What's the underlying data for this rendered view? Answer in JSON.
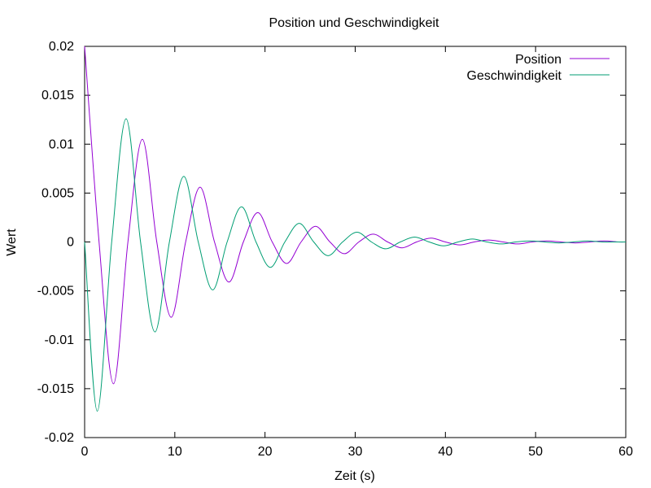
{
  "chart_data": {
    "type": "line",
    "title": "Position und Geschwindigkeit",
    "xlabel": "Zeit (s)",
    "ylabel": "Wert",
    "xlim": [
      0,
      60
    ],
    "ylim": [
      -0.02,
      0.02
    ],
    "xticks": [
      0,
      10,
      20,
      30,
      40,
      50,
      60
    ],
    "xtick_labels": [
      "0",
      "10",
      "20",
      "30",
      "40",
      "50",
      "60"
    ],
    "yticks": [
      -0.02,
      -0.015,
      -0.01,
      -0.005,
      0,
      0.005,
      0.01,
      0.015,
      0.02
    ],
    "ytick_labels": [
      "-0.02",
      "-0.015",
      "-0.01",
      "-0.005",
      "0",
      "0.005",
      "0.01",
      "0.015",
      "0.02"
    ],
    "grid": false,
    "legend_position": "top-right",
    "series": [
      {
        "name": "Position",
        "color": "#9400D3",
        "x": [
          0,
          1.6,
          3.2,
          4.8,
          6.4,
          8.0,
          9.6,
          11.2,
          12.8,
          14.4,
          16.0,
          17.6,
          19.2,
          20.8,
          22.4,
          24.0,
          25.6,
          27.2,
          28.8,
          30.4,
          32.0,
          33.6,
          35.2,
          36.8,
          38.4,
          40.0,
          41.6,
          43.2,
          44.8,
          46.4,
          48.0,
          49.6,
          51.2,
          52.8,
          54.4,
          56.0,
          57.6,
          59.2,
          60.0
        ],
        "y": [
          0.02,
          0.0,
          -0.0145,
          0.0,
          0.0105,
          0.0,
          -0.0077,
          0.0,
          0.0056,
          0.0,
          -0.0041,
          0.0,
          0.003,
          0.0,
          -0.0022,
          0.0,
          0.0016,
          0.0,
          -0.0012,
          0.0,
          0.0008,
          0.0,
          -0.0006,
          0.0,
          0.0004,
          0.0,
          -0.0003,
          0.0,
          0.0002,
          0.0,
          -0.0002,
          0.0,
          0.0001,
          0.0,
          -0.0001,
          0.0,
          0.0001,
          0.0,
          0.0
        ]
      },
      {
        "name": "Geschwindigkeit",
        "color": "#009E73",
        "x": [
          0,
          1.4,
          3.0,
          4.6,
          6.2,
          7.8,
          9.4,
          11.0,
          12.6,
          14.2,
          15.8,
          17.4,
          19.0,
          20.6,
          22.2,
          23.8,
          25.4,
          27.0,
          28.6,
          30.2,
          31.8,
          33.4,
          35.0,
          36.6,
          38.2,
          39.8,
          41.4,
          43.0,
          44.6,
          46.2,
          47.8,
          49.4,
          51.0,
          52.6,
          54.2,
          55.8,
          57.4,
          59.0,
          60.0
        ],
        "y": [
          0.0,
          -0.0173,
          0.0,
          0.0126,
          0.0,
          -0.0092,
          0.0,
          0.0067,
          0.0,
          -0.0049,
          0.0,
          0.0036,
          0.0,
          -0.0026,
          0.0,
          0.0019,
          0.0,
          -0.0014,
          0.0,
          0.001,
          0.0,
          -0.0007,
          0.0,
          0.0005,
          0.0,
          -0.0004,
          0.0,
          0.0003,
          0.0,
          -0.0002,
          0.0,
          0.0001,
          0.0,
          -0.0001,
          0.0,
          0.0001,
          0.0,
          0.0,
          0.0
        ]
      }
    ]
  }
}
